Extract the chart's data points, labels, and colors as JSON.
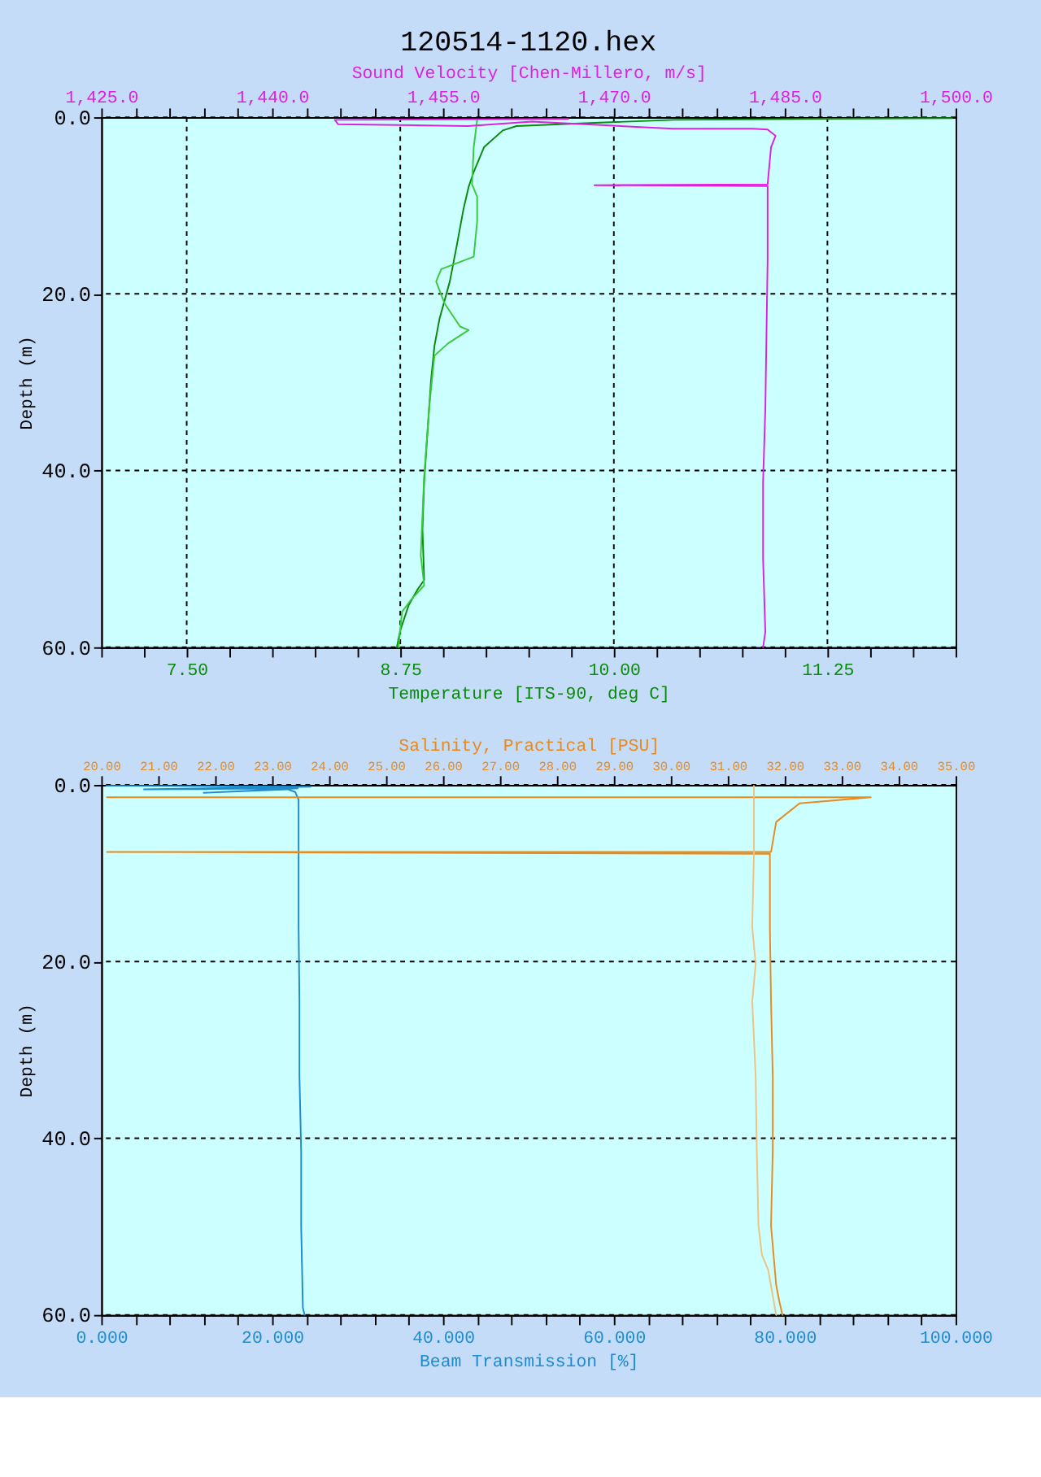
{
  "chart_data": [
    {
      "type": "line",
      "title": "120514-1120.hex",
      "ylabel": "Depth (m)",
      "xlabel": "Temperature [ITS-90, deg C]",
      "x2label": "Sound Velocity [Chen-Millero, m/s]",
      "xlim": [
        7,
        12
      ],
      "xticks": [
        {
          "value": 7,
          "label": null
        },
        {
          "value": 7.25,
          "label": null
        },
        {
          "value": 7.5,
          "label": "7.50"
        },
        {
          "value": 7.75,
          "label": null
        },
        {
          "value": 8,
          "label": null
        },
        {
          "value": 8.25,
          "label": null
        },
        {
          "value": 8.5,
          "label": null
        },
        {
          "value": 8.75,
          "label": "8.75"
        },
        {
          "value": 9,
          "label": null
        },
        {
          "value": 9.25,
          "label": null
        },
        {
          "value": 9.5,
          "label": null
        },
        {
          "value": 9.75,
          "label": null
        },
        {
          "value": 10,
          "label": "10.00"
        },
        {
          "value": 10.25,
          "label": null
        },
        {
          "value": 10.5,
          "label": null
        },
        {
          "value": 10.75,
          "label": null
        },
        {
          "value": 11,
          "label": null
        },
        {
          "value": 11.25,
          "label": "11.25"
        },
        {
          "value": 11.5,
          "label": null
        },
        {
          "value": 11.75,
          "label": null
        },
        {
          "value": 12,
          "label": null
        }
      ],
      "x2lim": [
        1425,
        1500
      ],
      "x2ticks": [
        {
          "value": 1425,
          "label": "1,425.0"
        },
        {
          "value": 1428,
          "label": null
        },
        {
          "value": 1431,
          "label": null
        },
        {
          "value": 1434,
          "label": null
        },
        {
          "value": 1437,
          "label": null
        },
        {
          "value": 1440,
          "label": "1,440.0"
        },
        {
          "value": 1443,
          "label": null
        },
        {
          "value": 1446,
          "label": null
        },
        {
          "value": 1449,
          "label": null
        },
        {
          "value": 1452,
          "label": null
        },
        {
          "value": 1455,
          "label": "1,455.0"
        },
        {
          "value": 1458,
          "label": null
        },
        {
          "value": 1461,
          "label": null
        },
        {
          "value": 1464,
          "label": null
        },
        {
          "value": 1467,
          "label": null
        },
        {
          "value": 1470,
          "label": "1,470.0"
        },
        {
          "value": 1473,
          "label": null
        },
        {
          "value": 1476,
          "label": null
        },
        {
          "value": 1479,
          "label": null
        },
        {
          "value": 1482,
          "label": null
        },
        {
          "value": 1485,
          "label": "1,485.0"
        },
        {
          "value": 1488,
          "label": null
        },
        {
          "value": 1491,
          "label": null
        },
        {
          "value": 1494,
          "label": null
        },
        {
          "value": 1497,
          "label": null
        },
        {
          "value": 1500,
          "label": "1,500.0"
        }
      ],
      "ylim": [
        60,
        0
      ],
      "yticks": [
        {
          "value": 0,
          "label": "0.0"
        },
        {
          "value": 20,
          "label": "20.0"
        },
        {
          "value": 40,
          "label": "40.0"
        },
        {
          "value": 60,
          "label": "60.0"
        }
      ],
      "grid": true,
      "series": [
        {
          "color": "#0a8a0a",
          "x": [
            11.98,
            11.09,
            10.35,
            9.8,
            9.43,
            9.35,
            9.24,
            9.18,
            9.15,
            9.12,
            9.08,
            9.04,
            8.98,
            8.95,
            8.93,
            8.91,
            8.89,
            8.88,
            8.89,
            8.85,
            8.8,
            8.75,
            8.73
          ],
          "values": [
            0.1,
            0.2,
            0.3,
            0.7,
            1.0,
            1.5,
            3.4,
            6.2,
            7.9,
            10.4,
            14.6,
            18.6,
            22.8,
            25.9,
            29.8,
            35.5,
            41.2,
            46.7,
            52.4,
            53.5,
            55.2,
            58.1,
            60
          ]
        },
        {
          "color": "#3cc83c",
          "x": [
            8.74,
            8.76,
            8.81,
            8.89,
            8.87,
            8.89,
            8.92,
            8.95,
            9.03,
            9.15,
            9.1,
            9.01,
            8.96,
            8.99,
            9.18,
            9.2,
            9.2,
            9.17,
            9.18,
            9.2
          ],
          "values": [
            60,
            56.0,
            54.7,
            53.0,
            49.6,
            40.6,
            32.7,
            27.0,
            25.6,
            24.1,
            23.7,
            21.1,
            18.6,
            17.2,
            15.8,
            11.8,
            9.0,
            7.6,
            3.4,
            0.3
          ]
        },
        {
          "color": "#e020e0",
          "axis": "x2",
          "x": [
            1466.0,
            1445.5,
            1445.8,
            1457.2,
            1462.8,
            1475.2,
            1482.2,
            1483.5,
            1484.2,
            1483.8,
            1483.5,
            1468.3,
            1483.5,
            1483.5,
            1483.4,
            1483.3,
            1483.1,
            1483.1,
            1483.3,
            1483.1
          ],
          "values": [
            0.2,
            0.3,
            0.8,
            1.0,
            0.5,
            1.3,
            1.3,
            1.4,
            2.1,
            3.4,
            7.6,
            7.7,
            7.8,
            16.1,
            24.5,
            33.0,
            41.4,
            49.9,
            58.3,
            60
          ]
        }
      ]
    },
    {
      "type": "line",
      "ylabel": "Depth (m)",
      "xlabel": "Beam Transmission [%]",
      "x2label": "Salinity, Practical [PSU]",
      "xlim": [
        0,
        100
      ],
      "xticks": [
        {
          "value": 0,
          "label": "0.000"
        },
        {
          "value": 4,
          "label": null
        },
        {
          "value": 8,
          "label": null
        },
        {
          "value": 12,
          "label": null
        },
        {
          "value": 16,
          "label": null
        },
        {
          "value": 20,
          "label": "20.000"
        },
        {
          "value": 24,
          "label": null
        },
        {
          "value": 28,
          "label": null
        },
        {
          "value": 32,
          "label": null
        },
        {
          "value": 36,
          "label": null
        },
        {
          "value": 40,
          "label": "40.000"
        },
        {
          "value": 44,
          "label": null
        },
        {
          "value": 48,
          "label": null
        },
        {
          "value": 52,
          "label": null
        },
        {
          "value": 56,
          "label": null
        },
        {
          "value": 60,
          "label": "60.000"
        },
        {
          "value": 64,
          "label": null
        },
        {
          "value": 68,
          "label": null
        },
        {
          "value": 72,
          "label": null
        },
        {
          "value": 76,
          "label": null
        },
        {
          "value": 80,
          "label": "80.000"
        },
        {
          "value": 84,
          "label": null
        },
        {
          "value": 88,
          "label": null
        },
        {
          "value": 92,
          "label": null
        },
        {
          "value": 96,
          "label": null
        },
        {
          "value": 100,
          "label": "100.000"
        }
      ],
      "x2lim": [
        20,
        35
      ],
      "x2ticks": [
        {
          "value": 20,
          "label": "20.00"
        },
        {
          "value": 21,
          "label": "21.00"
        },
        {
          "value": 22,
          "label": "22.00"
        },
        {
          "value": 23,
          "label": "23.00"
        },
        {
          "value": 24,
          "label": "24.00"
        },
        {
          "value": 25,
          "label": "25.00"
        },
        {
          "value": 26,
          "label": "26.00"
        },
        {
          "value": 27,
          "label": "27.00"
        },
        {
          "value": 28,
          "label": "28.00"
        },
        {
          "value": 29,
          "label": "29.00"
        },
        {
          "value": 30,
          "label": "30.00"
        },
        {
          "value": 31,
          "label": "31.00"
        },
        {
          "value": 32,
          "label": "32.00"
        },
        {
          "value": 33,
          "label": "33.00"
        },
        {
          "value": 34,
          "label": "34.00"
        },
        {
          "value": 35,
          "label": "35.00"
        }
      ],
      "ylim": [
        60,
        0
      ],
      "yticks": [
        {
          "value": 0,
          "label": "0.0"
        },
        {
          "value": 20,
          "label": "20.0"
        },
        {
          "value": 40,
          "label": "40.0"
        },
        {
          "value": 60,
          "label": "60.0"
        }
      ],
      "grid": "y",
      "series": [
        {
          "color": "#1e8ccd",
          "x": [
            0.6,
            24.5,
            5,
            23.0,
            12,
            21.8,
            22.7,
            23.1,
            23.1,
            23.1,
            23.2,
            23.2,
            23.4,
            23.4,
            23.6,
            23.8
          ],
          "values": [
            0.1,
            0.2,
            0.5,
            0.4,
            0.9,
            0.5,
            0.8,
            1.7,
            7.6,
            16.1,
            24.5,
            33.0,
            41.4,
            49.9,
            59.2,
            60
          ]
        },
        {
          "color": "#e88a1e",
          "axis": "x2",
          "x": [
            20.1,
            33.51,
            32.26,
            31.85,
            31.76,
            20.1,
            31.74,
            31.74,
            31.76,
            31.79,
            31.79,
            31.76,
            31.85,
            31.9,
            31.96
          ],
          "values": [
            1.4,
            1.4,
            2.1,
            4.2,
            7.6,
            7.6,
            7.8,
            16.1,
            24.5,
            33.0,
            41.4,
            49.9,
            56.6,
            58.3,
            60
          ]
        },
        {
          "color": "#f0c080",
          "axis": "x2",
          "x": [
            31.46,
            31.46,
            31.43,
            31.49,
            31.43,
            31.49,
            31.51,
            31.54,
            31.6,
            31.71,
            31.85
          ],
          "values": [
            0.1,
            7.6,
            16.1,
            20.3,
            24.5,
            33.0,
            41.4,
            49.9,
            53.2,
            54.9,
            60
          ]
        }
      ]
    }
  ]
}
